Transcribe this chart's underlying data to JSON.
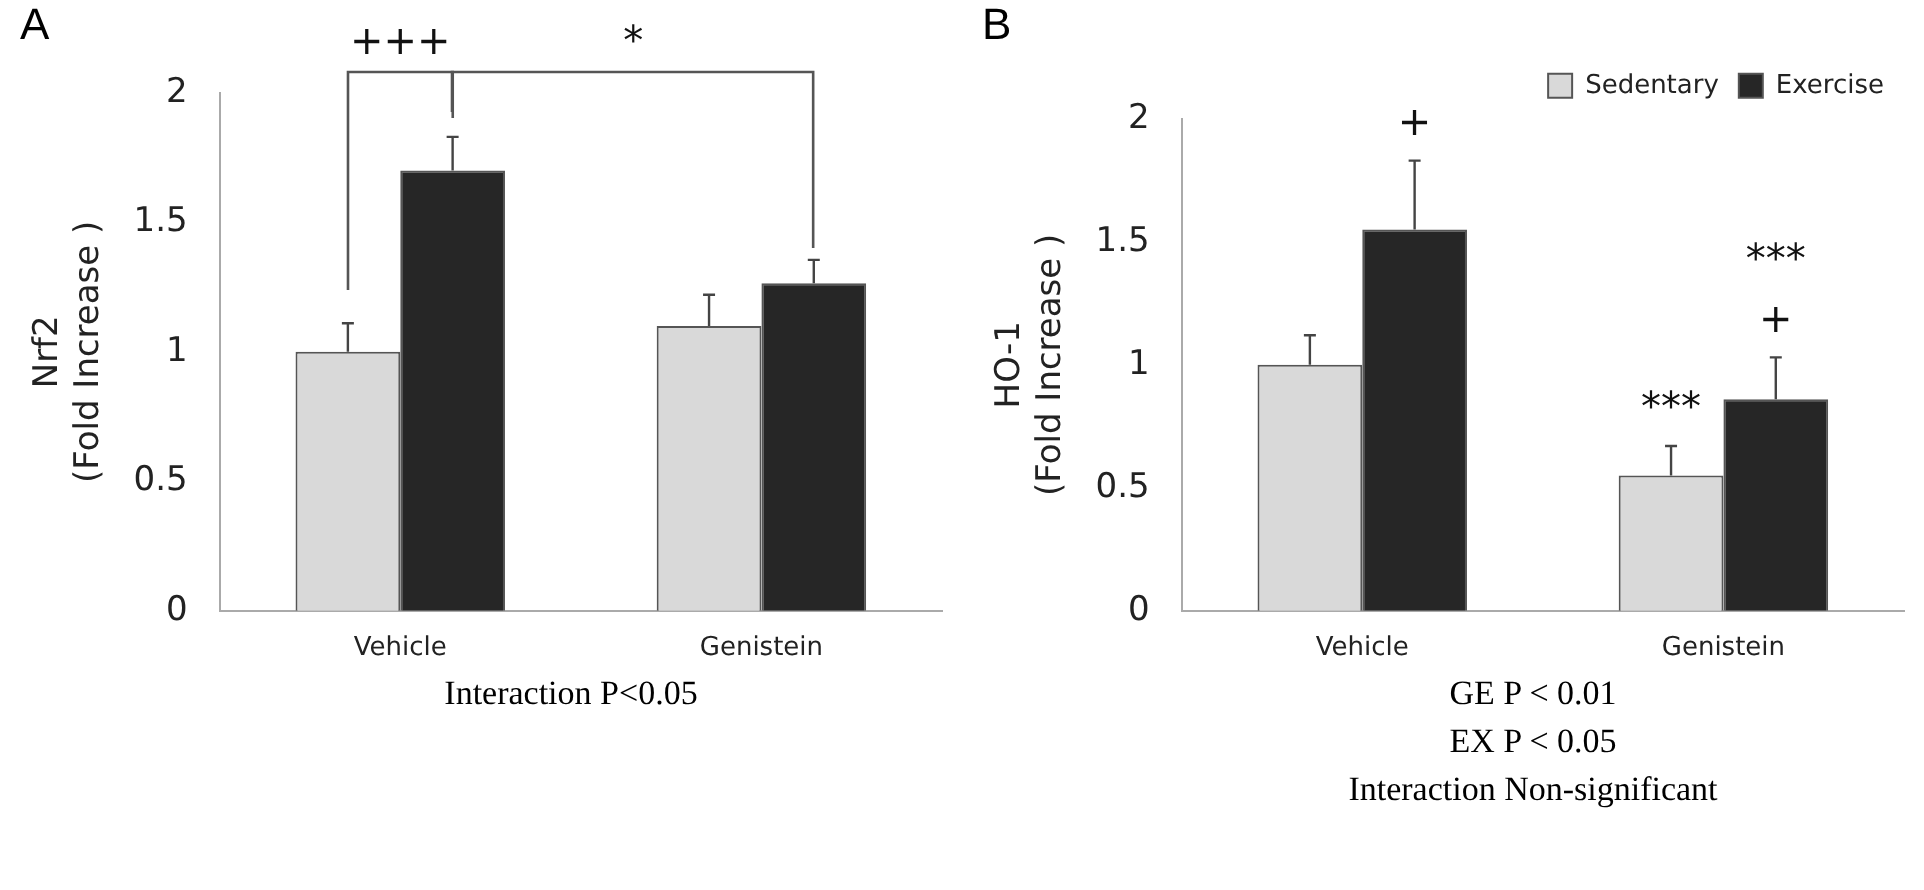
{
  "chart_data": [
    {
      "type": "bar",
      "title": "A",
      "ylabel": "Nrf2\n(Fold Increase )",
      "categories": [
        "Vehicle",
        "Genistein"
      ],
      "series": [
        {
          "color": "#d9d9d9",
          "values": [
            1.0,
            1.1
          ],
          "errors": [
            0.11,
            0.12
          ]
        },
        {
          "color": "#262626",
          "values": [
            1.7,
            1.265
          ],
          "errors": [
            0.13,
            0.09
          ]
        }
      ],
      "ylim": [
        0,
        2
      ],
      "yticks": [
        0,
        0.5,
        1,
        1.5,
        2
      ],
      "grid": false,
      "legend": false,
      "annotations": [
        "+++",
        "*",
        "Interaction P<0.05"
      ]
    },
    {
      "type": "bar",
      "title": "B",
      "ylabel": "HO-1\n(Fold Increase )",
      "categories": [
        "Vehicle",
        "Genistein"
      ],
      "series": [
        {
          "name": "Sedentary",
          "color": "#d9d9d9",
          "values": [
            1.0,
            0.55
          ],
          "errors": [
            0.12,
            0.12
          ]
        },
        {
          "name": "Exercise",
          "color": "#262626",
          "values": [
            1.55,
            0.86
          ],
          "errors": [
            0.28,
            0.17
          ]
        }
      ],
      "ylim": [
        0,
        2
      ],
      "yticks": [
        0,
        0.5,
        1,
        1.5,
        2
      ],
      "grid": false,
      "legend": "top right",
      "annotations": [
        "+",
        "+",
        "***",
        "***",
        "GE    P < 0.01",
        "EX    P < 0.05",
        "Interaction Non-significant"
      ]
    }
  ]
}
